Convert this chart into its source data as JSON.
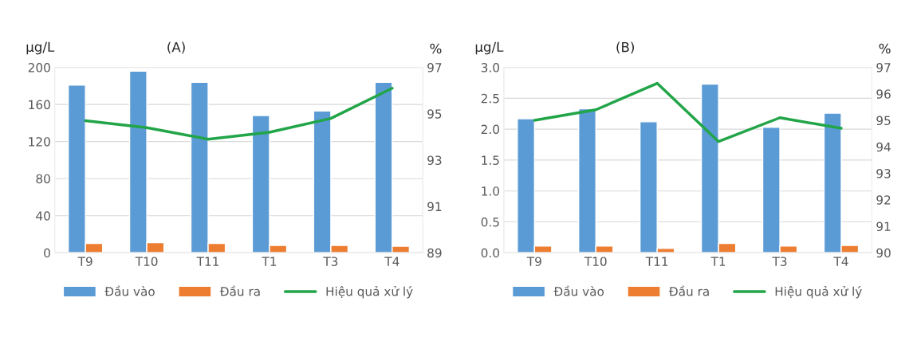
{
  "chart_data": [
    {
      "type": "bar",
      "title": "(A)",
      "ylabel": "µg/L",
      "y2label": "%",
      "categories": [
        "T9",
        "T10",
        "T11",
        "T1",
        "T3",
        "T4"
      ],
      "series": [
        {
          "name": "Đầu vào",
          "color": "#5b9bd5",
          "values": [
            181,
            196,
            184,
            148,
            153,
            184
          ]
        },
        {
          "name": "Đầu ra",
          "color": "#ed7d31",
          "values": [
            10,
            11,
            10,
            8,
            8,
            7
          ]
        },
        {
          "name": "Hiệu quả xử lý",
          "type": "line",
          "axis": "y2",
          "color": "#22a548",
          "values": [
            94.7,
            94.4,
            93.9,
            94.2,
            94.8,
            96.1
          ]
        }
      ],
      "ylim": [
        0,
        200
      ],
      "yticks": [
        0,
        40,
        80,
        120,
        160,
        200
      ],
      "y2lim": [
        89,
        97
      ],
      "y2ticks": [
        89,
        91,
        93,
        95,
        97
      ],
      "grid": "y",
      "legend": "bottom",
      "marker": "none",
      "line_style": "solid"
    },
    {
      "type": "bar",
      "title": "(B)",
      "ylabel": "µg/L",
      "y2label": "%",
      "categories": [
        "T9",
        "T10",
        "T11",
        "T1",
        "T3",
        "T4"
      ],
      "series": [
        {
          "name": "Đầu vào",
          "color": "#5b9bd5",
          "values": [
            2.17,
            2.33,
            2.12,
            2.73,
            2.03,
            2.26
          ]
        },
        {
          "name": "Đầu ra",
          "color": "#ed7d31",
          "values": [
            0.11,
            0.11,
            0.07,
            0.15,
            0.11,
            0.12
          ]
        },
        {
          "name": "Hiệu quả xử lý",
          "type": "line",
          "axis": "y2",
          "color": "#22a548",
          "values": [
            95.0,
            95.4,
            96.4,
            94.2,
            95.1,
            94.7
          ]
        }
      ],
      "ylim": [
        0,
        3.0
      ],
      "yticks": [
        {
          "value": 0,
          "label": "0.0"
        },
        {
          "value": 0.5,
          "label": "0.5"
        },
        {
          "value": 1.0,
          "label": "1.0"
        },
        {
          "value": 1.5,
          "label": "1.5"
        },
        {
          "value": 2.0,
          "label": "2.0"
        },
        {
          "value": 2.5,
          "label": "2.5"
        },
        {
          "value": 3.0,
          "label": "3.0"
        }
      ],
      "y2lim": [
        90,
        97
      ],
      "y2ticks": [
        90,
        91,
        92,
        93,
        94,
        95,
        96,
        97
      ],
      "grid": "y",
      "legend": "bottom",
      "marker": "none",
      "line_style": "solid"
    }
  ]
}
